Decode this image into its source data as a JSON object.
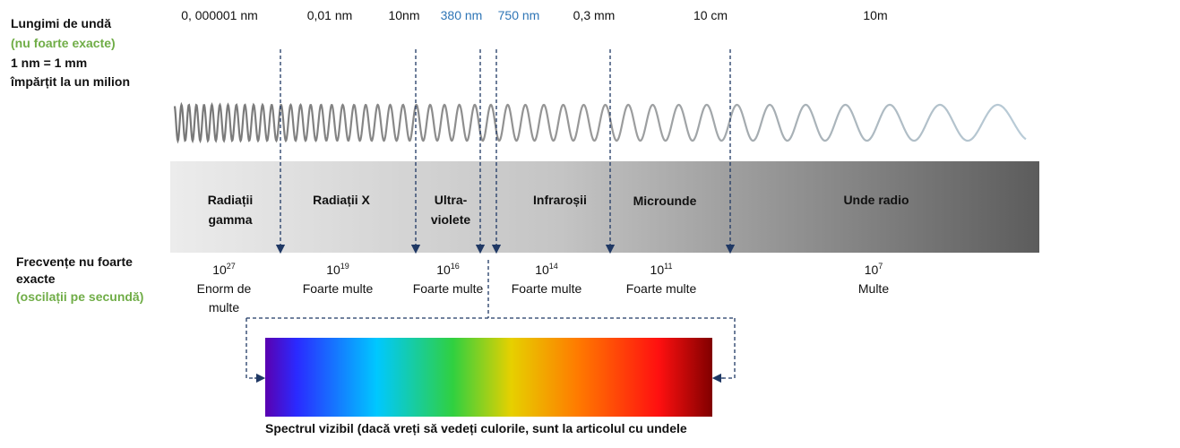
{
  "left_labels": {
    "wavelength_title": "Lungimi de undă",
    "wavelength_note": "(nu foarte exacte)",
    "unit_line1": "1 nm = 1 mm",
    "unit_line2": "împărțit la un milion"
  },
  "wavelengths": [
    "0, 000001 nm",
    "0,01 nm",
    "10nm",
    "380 nm",
    "750 nm",
    "0,3 mm",
    "10 cm",
    "10m"
  ],
  "bands": [
    "Radiații gamma",
    "Radiații X",
    "Ultra-violete",
    "Infraroșii",
    "Microunde",
    "Unde radio"
  ],
  "frequency_title": "Frecvențe nu foarte exacte",
  "frequency_note": "(oscilații pe secundă)",
  "frequencies": [
    {
      "base": "10",
      "exponent": "27",
      "label": "Enorm de multe"
    },
    {
      "base": "10",
      "exponent": "19",
      "label": "Foarte multe"
    },
    {
      "base": "10",
      "exponent": "16",
      "label": "Foarte multe"
    },
    {
      "base": "10",
      "exponent": "14",
      "label": "Foarte multe"
    },
    {
      "base": "10",
      "exponent": "11",
      "label": "Foarte multe"
    },
    {
      "base": "10",
      "exponent": "7",
      "label": "Multe"
    }
  ],
  "caption": "Spectrul vizibil (dacă vreți să vedeți culorile, sunt la articolul cu undele"
}
